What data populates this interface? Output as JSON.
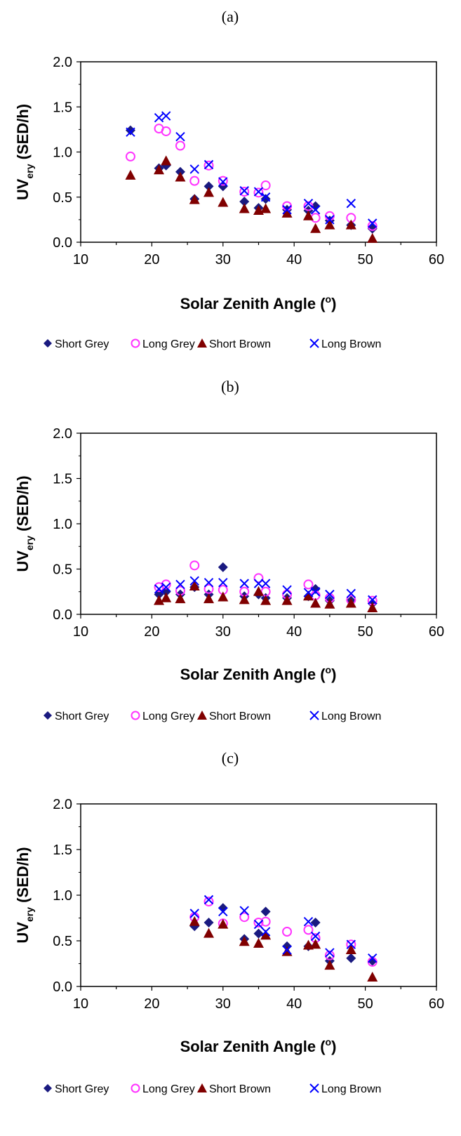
{
  "chart_data": [
    {
      "type": "scatter",
      "panel_label": "(a)",
      "xlabel": "Solar Zenith Angle (",
      "xlabel_sup": "o",
      "xlabel_end": ")",
      "ylabel": "UV",
      "ylabel_sub": "ery",
      "ylabel_end": " (SED/h)",
      "xlim": [
        10,
        60
      ],
      "ylim": [
        0,
        2.0
      ],
      "xticks": [
        "10",
        "20",
        "30",
        "40",
        "50",
        "60"
      ],
      "yticks": [
        "0.0",
        "0.5",
        "1.0",
        "1.5",
        "2.0"
      ],
      "grid": false,
      "legend_position": "bottom",
      "series": [
        {
          "name": "Short Grey",
          "marker": "diamond",
          "color": "#1a1a80",
          "x": [
            17,
            21,
            22,
            24,
            26,
            28,
            30,
            33,
            35,
            36,
            39,
            42,
            43,
            45,
            48,
            51
          ],
          "y": [
            1.24,
            0.82,
            0.85,
            0.78,
            0.48,
            0.62,
            0.62,
            0.45,
            0.38,
            0.48,
            0.36,
            0.35,
            0.4,
            0.24,
            0.19,
            0.15
          ]
        },
        {
          "name": "Long Grey",
          "marker": "circle",
          "color": "#ff33ff",
          "x": [
            17,
            21,
            22,
            24,
            26,
            28,
            30,
            33,
            35,
            36,
            39,
            42,
            43,
            45,
            48,
            51
          ],
          "y": [
            0.95,
            1.26,
            1.23,
            1.07,
            0.68,
            0.85,
            0.68,
            0.56,
            0.55,
            0.63,
            0.4,
            0.4,
            0.27,
            0.29,
            0.27,
            0.18
          ]
        },
        {
          "name": "Short Brown",
          "marker": "triangle",
          "color": "#800000",
          "x": [
            17,
            21,
            22,
            24,
            26,
            28,
            30,
            33,
            35,
            36,
            39,
            42,
            43,
            45,
            48,
            51
          ],
          "y": [
            0.74,
            0.8,
            0.9,
            0.72,
            0.47,
            0.55,
            0.44,
            0.37,
            0.35,
            0.37,
            0.32,
            0.29,
            0.15,
            0.19,
            0.19,
            0.04
          ]
        },
        {
          "name": "Long Brown",
          "marker": "x",
          "color": "#0000ff",
          "x": [
            17,
            21,
            22,
            24,
            26,
            28,
            30,
            33,
            35,
            36,
            39,
            42,
            43,
            45,
            48,
            51
          ],
          "y": [
            1.22,
            1.38,
            1.4,
            1.17,
            0.81,
            0.86,
            0.67,
            0.57,
            0.56,
            0.5,
            0.36,
            0.43,
            0.36,
            0.25,
            0.43,
            0.21
          ]
        }
      ]
    },
    {
      "type": "scatter",
      "panel_label": "(b)",
      "xlabel": "Solar Zenith Angle (",
      "xlabel_sup": "o",
      "xlabel_end": ")",
      "ylabel": "UV",
      "ylabel_sub": "ery",
      "ylabel_end": " (SED/h)",
      "xlim": [
        10,
        60
      ],
      "ylim": [
        0,
        2.0
      ],
      "xticks": [
        "10",
        "20",
        "30",
        "40",
        "50",
        "60"
      ],
      "yticks": [
        "0.0",
        "0.5",
        "1.0",
        "1.5",
        "2.0"
      ],
      "grid": false,
      "legend_position": "bottom",
      "series": [
        {
          "name": "Short Grey",
          "marker": "diamond",
          "color": "#1a1a80",
          "x": [
            21,
            22,
            24,
            26,
            28,
            30,
            33,
            35,
            36,
            39,
            42,
            43,
            45,
            48,
            51
          ],
          "y": [
            0.22,
            0.25,
            0.22,
            0.3,
            0.22,
            0.52,
            0.2,
            0.22,
            0.18,
            0.18,
            0.2,
            0.28,
            0.15,
            0.15,
            0.12
          ]
        },
        {
          "name": "Long Grey",
          "marker": "circle",
          "color": "#ff33ff",
          "x": [
            21,
            22,
            24,
            26,
            28,
            30,
            33,
            35,
            36,
            39,
            42,
            43,
            45,
            48,
            51
          ],
          "y": [
            0.3,
            0.33,
            0.26,
            0.54,
            0.28,
            0.27,
            0.25,
            0.4,
            0.25,
            0.22,
            0.33,
            0.21,
            0.18,
            0.16,
            0.15
          ]
        },
        {
          "name": "Short Brown",
          "marker": "triangle",
          "color": "#800000",
          "x": [
            21,
            22,
            24,
            26,
            28,
            30,
            33,
            35,
            36,
            39,
            42,
            43,
            45,
            48,
            51
          ],
          "y": [
            0.15,
            0.18,
            0.17,
            0.31,
            0.17,
            0.19,
            0.16,
            0.25,
            0.15,
            0.15,
            0.2,
            0.12,
            0.11,
            0.12,
            0.07
          ]
        },
        {
          "name": "Long Brown",
          "marker": "x",
          "color": "#0000ff",
          "x": [
            21,
            22,
            24,
            26,
            28,
            30,
            33,
            35,
            36,
            39,
            42,
            43,
            45,
            48,
            51
          ],
          "y": [
            0.28,
            0.3,
            0.33,
            0.37,
            0.35,
            0.35,
            0.34,
            0.34,
            0.34,
            0.27,
            0.24,
            0.25,
            0.22,
            0.23,
            0.16
          ]
        }
      ]
    },
    {
      "type": "scatter",
      "panel_label": "(c)",
      "xlabel": "Solar Zenith Angle (",
      "xlabel_sup": "o",
      "xlabel_end": ")",
      "ylabel": "UV",
      "ylabel_sub": "ery",
      "ylabel_end": " (SED/h)",
      "xlim": [
        10,
        60
      ],
      "ylim": [
        0,
        2.0
      ],
      "xticks": [
        "10",
        "20",
        "30",
        "40",
        "50",
        "60"
      ],
      "yticks": [
        "0.0",
        "0.5",
        "1.0",
        "1.5",
        "2.0"
      ],
      "grid": false,
      "legend_position": "bottom",
      "series": [
        {
          "name": "Short Grey",
          "marker": "diamond",
          "color": "#1a1a80",
          "x": [
            26,
            28,
            30,
            33,
            35,
            36,
            39,
            42,
            43,
            45,
            48,
            51
          ],
          "y": [
            0.66,
            0.7,
            0.86,
            0.52,
            0.58,
            0.82,
            0.44,
            0.44,
            0.7,
            0.28,
            0.31,
            0.28
          ]
        },
        {
          "name": "Long Grey",
          "marker": "circle",
          "color": "#ff33ff",
          "x": [
            26,
            28,
            30,
            33,
            35,
            36,
            39,
            42,
            43,
            45,
            48,
            51
          ],
          "y": [
            0.76,
            0.93,
            0.69,
            0.76,
            0.7,
            0.71,
            0.6,
            0.62,
            0.53,
            0.34,
            0.46,
            0.27
          ]
        },
        {
          "name": "Short Brown",
          "marker": "triangle",
          "color": "#800000",
          "x": [
            26,
            28,
            30,
            33,
            35,
            36,
            39,
            42,
            43,
            45,
            48,
            51
          ],
          "y": [
            0.71,
            0.58,
            0.68,
            0.49,
            0.47,
            0.56,
            0.38,
            0.45,
            0.46,
            0.23,
            0.4,
            0.1
          ]
        },
        {
          "name": "Long Brown",
          "marker": "x",
          "color": "#0000ff",
          "x": [
            26,
            28,
            30,
            33,
            35,
            36,
            39,
            42,
            43,
            45,
            48,
            51
          ],
          "y": [
            0.8,
            0.95,
            0.82,
            0.83,
            0.68,
            0.6,
            0.4,
            0.71,
            0.55,
            0.37,
            0.46,
            0.31
          ]
        }
      ]
    }
  ]
}
